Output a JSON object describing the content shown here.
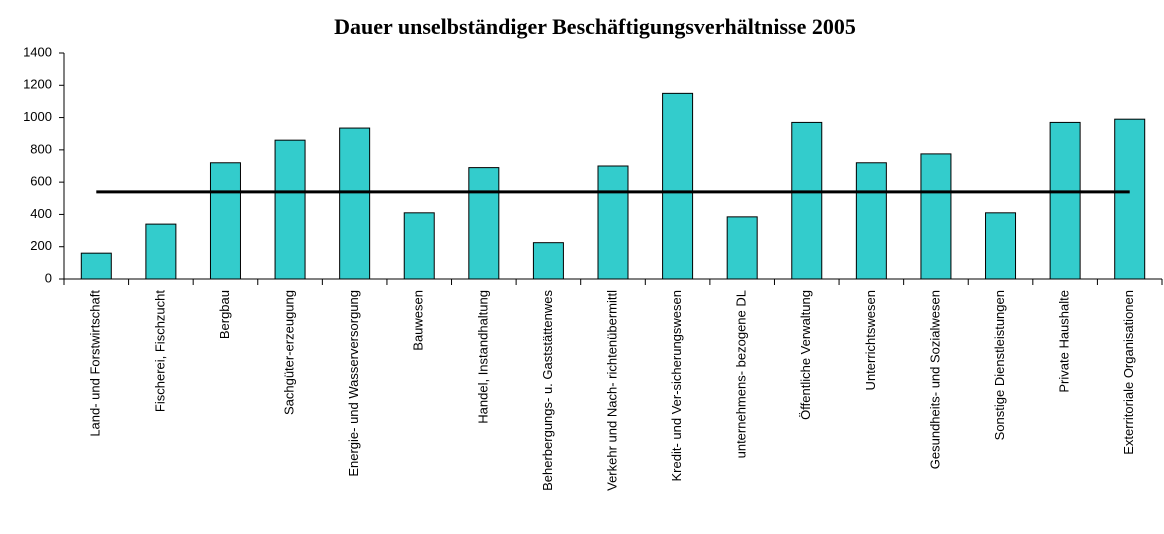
{
  "chart_data": {
    "type": "bar",
    "title": "Dauer unselbständiger Beschäftigungsverhältnisse 2005",
    "categories": [
      "Land- und Forstwirtschaft",
      "Fischerei, Fischzucht",
      "Bergbau",
      "Sachgüter-erzeugung",
      "Energie- und Wasserversorgung",
      "Bauwesen",
      "Handel, Instandhaltung",
      "Beherbergungs- u. Gaststättenwes",
      "Verkehr und Nach- richtenübermittl",
      "Kredit- und Ver-sicherungswesen",
      "unternehmens- bezogene DL",
      "Öffentliche Verwaltung",
      "Unterrichtswesen",
      "Gesundheits- und Sozialwesen",
      "Sonstige Dienstleistungen",
      "Private Haushalte",
      "Exterritoriale Organisationen"
    ],
    "series": [
      {
        "type": "bar",
        "color": "#33cccc",
        "values": [
          160,
          340,
          720,
          860,
          935,
          410,
          690,
          225,
          700,
          1150,
          385,
          970,
          720,
          775,
          410,
          970,
          990
        ]
      },
      {
        "type": "line",
        "color": "#000000",
        "values": [
          540,
          540,
          540,
          540,
          540,
          540,
          540,
          540,
          540,
          540,
          540,
          540,
          540,
          540,
          540,
          540,
          540
        ]
      }
    ],
    "ylim": [
      0,
      1400
    ],
    "yticks": [
      0,
      200,
      400,
      600,
      800,
      1000,
      1200,
      1400
    ],
    "grid": false
  }
}
